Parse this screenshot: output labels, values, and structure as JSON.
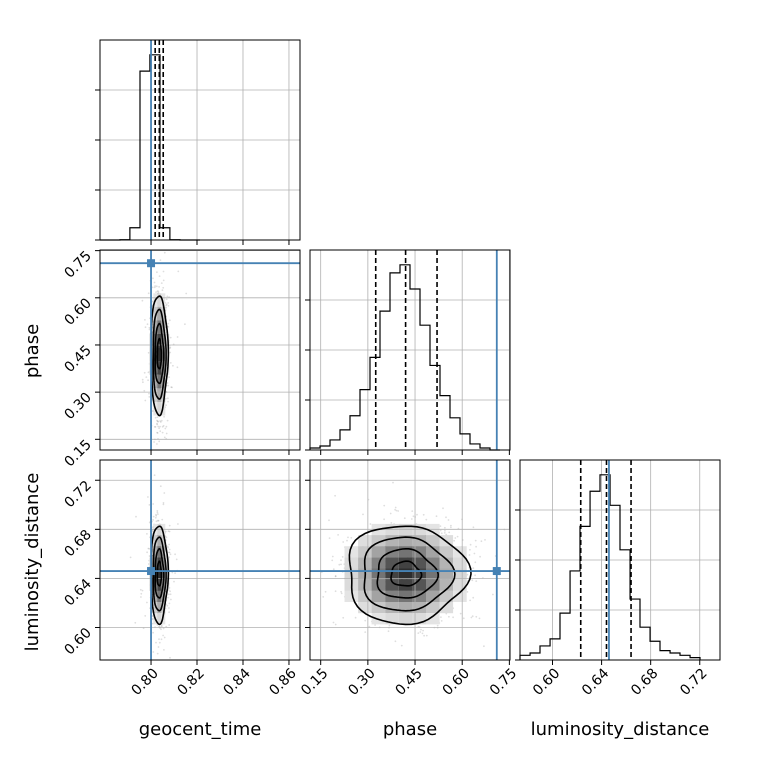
{
  "chart_data": {
    "type": "corner",
    "parameters": [
      "geocent_time",
      "phase",
      "luminosity_distance"
    ],
    "ranges": {
      "geocent_time": [
        0.7778,
        0.8648
      ],
      "phase": [
        0.116,
        0.752
      ],
      "luminosity_distance": [
        0.5735,
        0.7365
      ]
    },
    "ticks": {
      "geocent_time": [
        "0.80",
        "0.82",
        "0.84",
        "0.86"
      ],
      "phase": [
        "0.15",
        "0.30",
        "0.45",
        "0.60",
        "0.75"
      ],
      "luminosity_distance": [
        "0.60",
        "0.64",
        "0.68",
        "0.72"
      ]
    },
    "truths": {
      "geocent_time": 0.8,
      "phase": 0.71,
      "luminosity_distance": 0.646
    },
    "truth_color": "#4682b4",
    "histograms": {
      "geocent_time": {
        "edges": [
          0.7778,
          0.7821,
          0.7865,
          0.7908,
          0.7952,
          0.7995,
          0.8039,
          0.8082,
          0.8126,
          0.8169,
          0.8213
        ],
        "values": [
          0,
          0,
          1,
          45,
          620,
          680,
          45,
          1,
          0,
          0
        ],
        "quantiles": [
          0.8018,
          0.8036,
          0.8053
        ]
      },
      "phase": {
        "edges": [
          0.116,
          0.1478,
          0.1796,
          0.2114,
          0.2432,
          0.275,
          0.3068,
          0.3386,
          0.3704,
          0.4022,
          0.434,
          0.4658,
          0.4976,
          0.5294,
          0.5612,
          0.593,
          0.6248,
          0.6566,
          0.6884,
          0.7202
        ],
        "values": [
          1,
          2,
          5,
          10,
          17,
          30,
          46,
          69,
          88,
          92,
          80,
          62,
          42,
          27,
          16,
          8,
          3,
          1,
          0
        ],
        "quantiles": [
          0.325,
          0.42,
          0.52
        ]
      },
      "luminosity_distance": {
        "edges": [
          0.5735,
          0.5817,
          0.5898,
          0.598,
          0.6061,
          0.6143,
          0.6224,
          0.6306,
          0.6387,
          0.6469,
          0.655,
          0.6632,
          0.6713,
          0.6795,
          0.6876,
          0.6958,
          0.7039,
          0.7121,
          0.7202
        ],
        "values": [
          2,
          3,
          6,
          9,
          20,
          38,
          57,
          72,
          79,
          66,
          47,
          26,
          14,
          8,
          4,
          3,
          2,
          1
        ],
        "quantiles": [
          0.623,
          0.644,
          0.664
        ]
      }
    },
    "posterior_center": {
      "geocent_time": 0.8036,
      "phase": 0.42,
      "luminosity_distance": 0.6435
    },
    "posterior_sigma": {
      "geocent_time": 0.0018,
      "phase": 0.095,
      "luminosity_distance": 0.02
    },
    "grid": true
  }
}
